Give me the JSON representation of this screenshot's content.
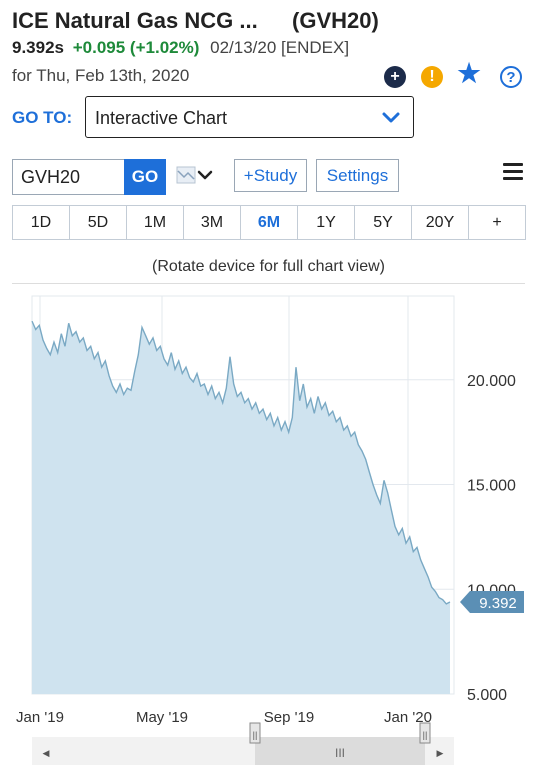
{
  "header": {
    "name": "ICE Natural Gas NCG ...",
    "symbol": "(GVH20)",
    "price": "9.392s",
    "change": "+0.095 (+1.02%)",
    "date_exchange": "02/13/20 [ENDEX]",
    "for_date": "for Thu, Feb 13th, 2020"
  },
  "actions": {
    "plus_icon": "plus-circle-icon",
    "alert_icon": "alert-icon",
    "star_icon": "star-icon",
    "help_icon": "help-icon",
    "plus_glyph": "+",
    "alert_glyph": "!",
    "star_glyph": "★",
    "help_glyph": "?"
  },
  "goto": {
    "label": "GO TO:",
    "selected": "Interactive Chart"
  },
  "toolbar": {
    "symbol_value": "GVH20",
    "go_label": "GO",
    "study_label": "+Study",
    "settings_label": "Settings"
  },
  "ranges": [
    {
      "label": "1D",
      "active": false
    },
    {
      "label": "5D",
      "active": false
    },
    {
      "label": "1M",
      "active": false
    },
    {
      "label": "3M",
      "active": false
    },
    {
      "label": "6M",
      "active": true
    },
    {
      "label": "1Y",
      "active": false
    },
    {
      "label": "5Y",
      "active": false
    },
    {
      "label": "20Y",
      "active": false
    },
    {
      "label": "+",
      "active": false
    }
  ],
  "rotate_hint": "(Rotate device for full chart view)",
  "colors": {
    "accent": "#1e6fd9",
    "positive": "#1e8a3a",
    "area_fill": "#cfe3ef",
    "line": "#7aa9c4",
    "price_tag": "#5b8fb5"
  },
  "chart_data": {
    "type": "area",
    "x_tick_labels": [
      "Jan '19",
      "May '19",
      "Sep '19",
      "Jan '20"
    ],
    "y_tick_labels": [
      "20.000",
      "15.000",
      "10.000",
      "5.000"
    ],
    "y_ticks": [
      20,
      15,
      10,
      5
    ],
    "ylim": [
      5,
      24
    ],
    "last_price_label": "9.392",
    "series": [
      {
        "values": [
          22.8,
          22.4,
          22.6,
          21.9,
          21.5,
          21.2,
          21.8,
          21.3,
          22.2,
          21.6,
          22.7,
          22.1,
          22.3,
          21.8,
          22.0,
          21.4,
          21.6,
          21.0,
          21.3,
          20.6,
          20.9,
          20.2,
          19.7,
          19.4,
          19.8,
          19.3,
          19.6,
          19.5,
          20.4,
          21.2,
          22.5,
          22.1,
          21.7,
          22.0,
          21.4,
          21.6,
          21.0,
          20.7,
          21.3,
          20.5,
          20.9,
          20.3,
          20.6,
          20.1,
          19.9,
          20.3,
          19.7,
          19.8,
          19.3,
          19.7,
          19.1,
          19.4,
          18.9,
          19.6,
          21.1,
          19.8,
          19.2,
          19.4,
          18.9,
          19.1,
          18.6,
          18.9,
          18.4,
          18.6,
          18.1,
          18.4,
          17.8,
          18.2,
          17.6,
          18.0,
          17.5,
          18.2,
          20.6,
          19.0,
          19.8,
          18.7,
          19.1,
          18.4,
          19.2,
          18.6,
          18.9,
          18.3,
          18.5,
          18.0,
          18.2,
          17.6,
          17.8,
          17.3,
          17.5,
          16.9,
          16.6,
          16.2,
          15.6,
          15.0,
          14.5,
          14.1,
          15.2,
          14.6,
          13.8,
          13.0,
          12.6,
          12.9,
          12.2,
          12.5,
          11.8,
          12.0,
          11.4,
          11.0,
          10.6,
          10.1,
          9.9,
          9.6,
          9.5,
          9.3,
          9.392
        ]
      }
    ]
  },
  "navigator": {
    "left_arrow": "◀",
    "right_arrow": "▶",
    "grip": "III",
    "handle_grip": "||"
  }
}
